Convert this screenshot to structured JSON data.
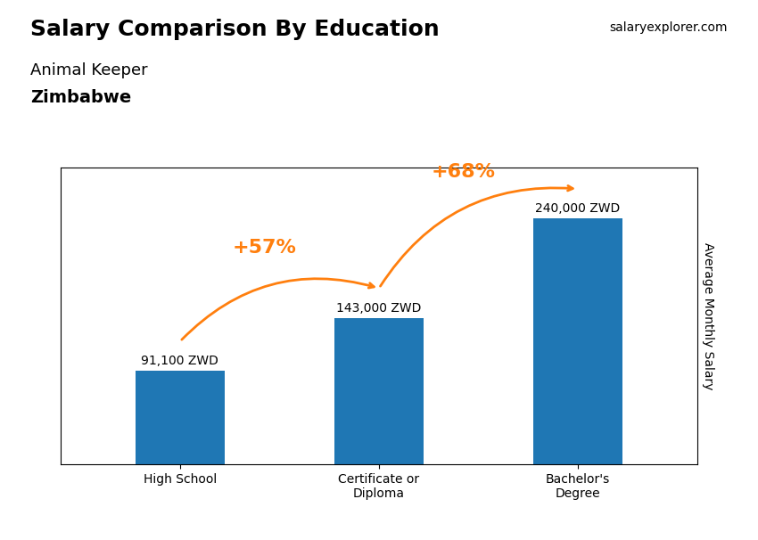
{
  "chart_data": {
    "type": "bar",
    "title": "Salary Comparison By Education",
    "subtitle": [
      "Animal Keeper",
      "Zimbabwe"
    ],
    "source": "salaryexplorer.com",
    "ylabel": "Average Monthly Salary",
    "categories": [
      "High School",
      "Certificate or\nDiploma",
      "Bachelor's\nDegree"
    ],
    "values": [
      91100,
      143000,
      240000
    ],
    "value_labels": [
      "91,100 ZWD",
      "143,000 ZWD",
      "240,000 ZWD"
    ],
    "data_labels": true,
    "annotations": [
      "+57%",
      "+68%"
    ],
    "ylim": [
      0,
      290000
    ],
    "tick_labels": "x",
    "grid": false
  }
}
